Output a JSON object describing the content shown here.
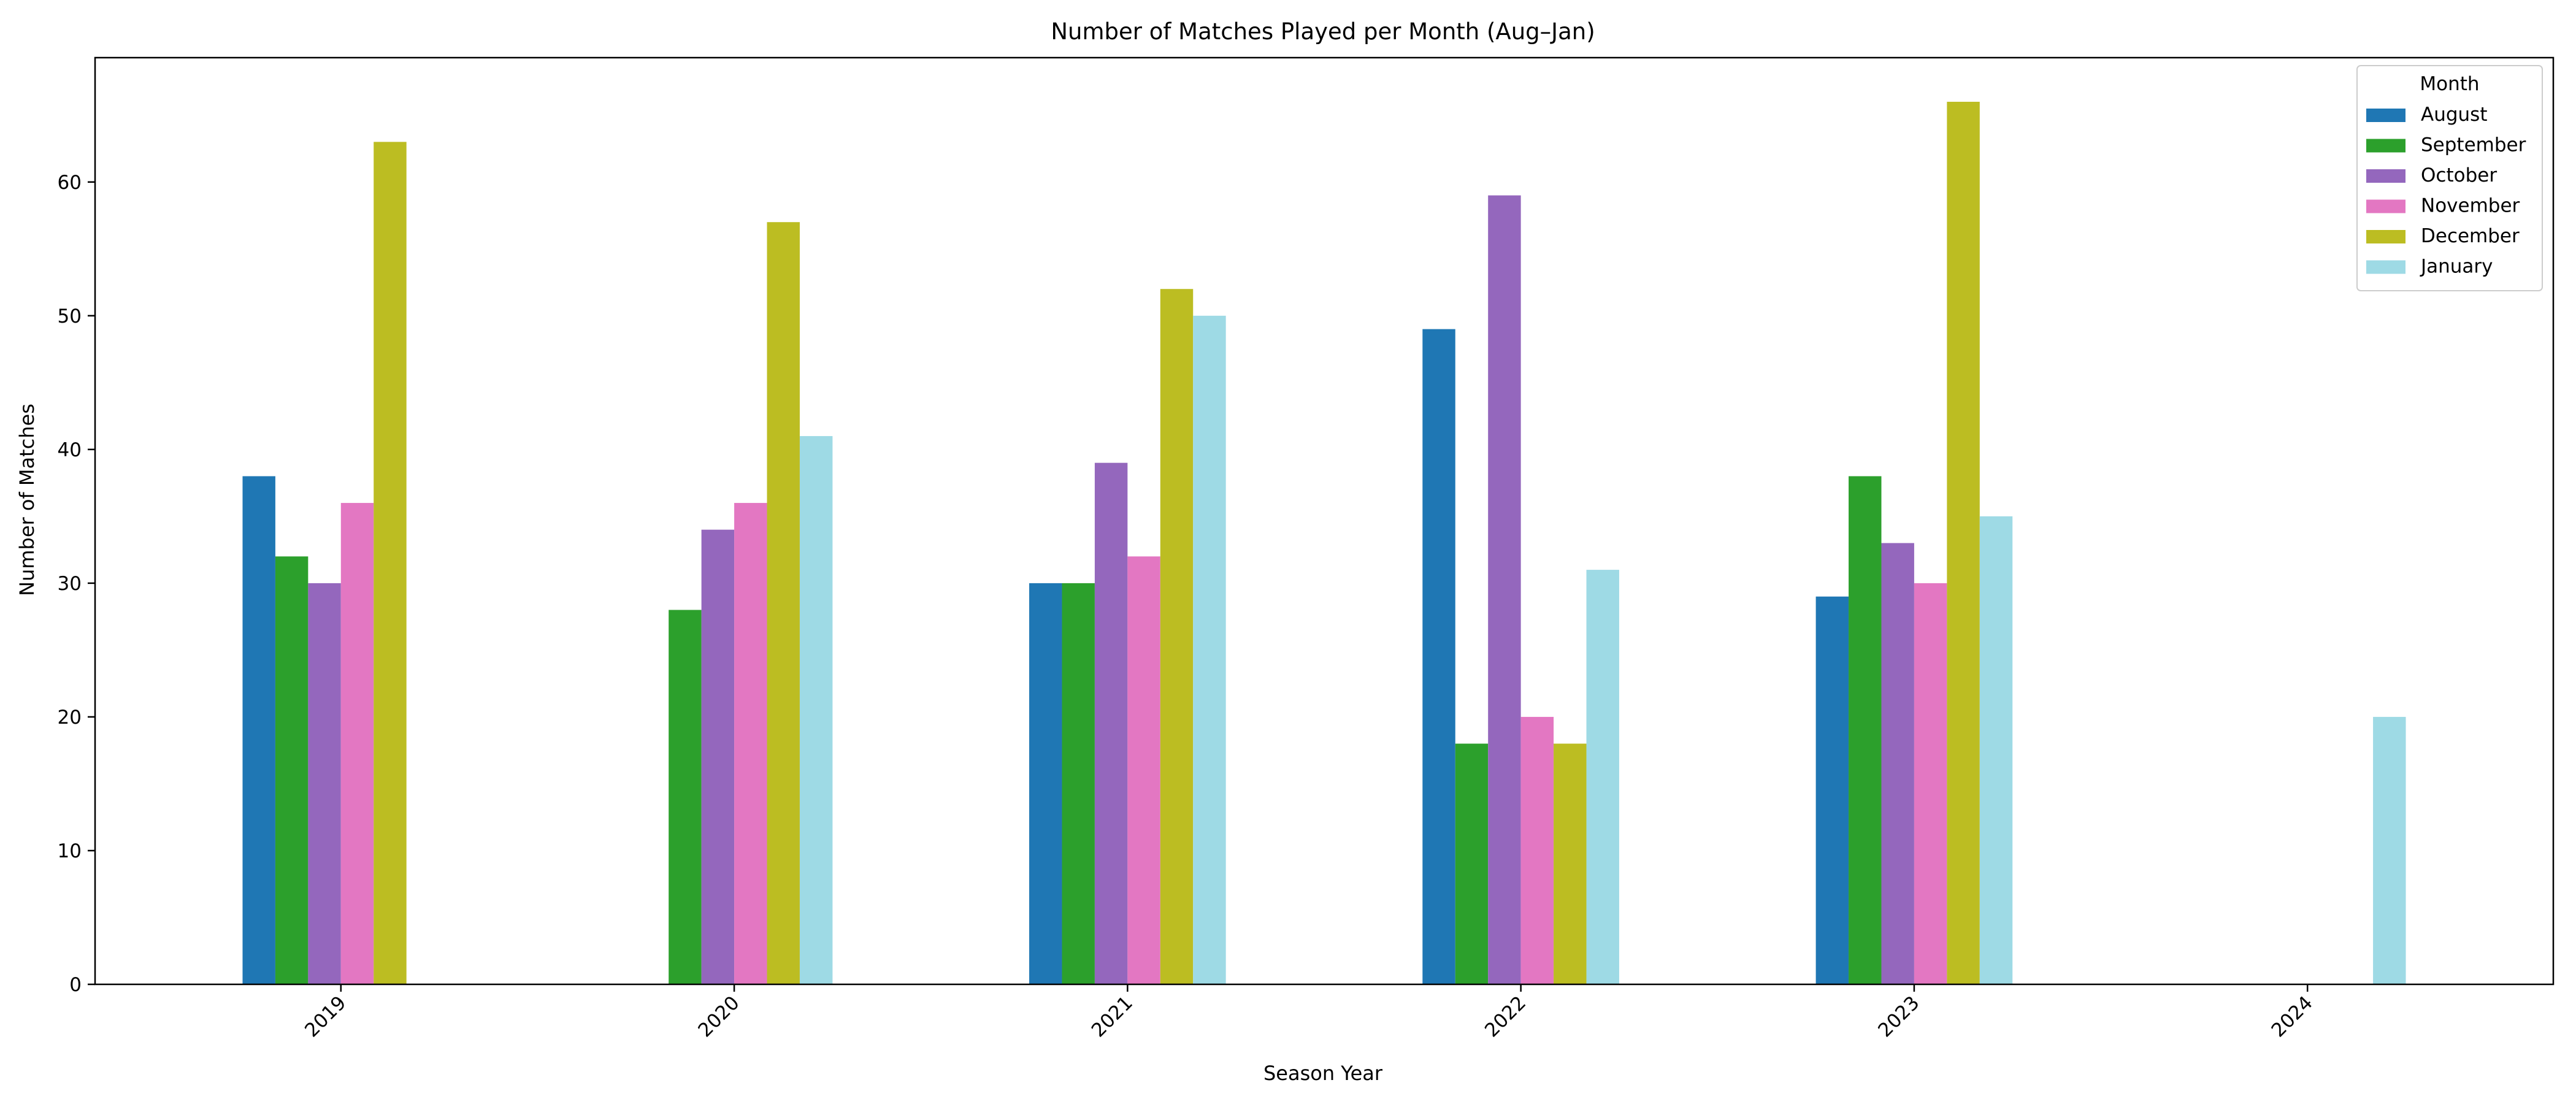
{
  "chart_data": {
    "type": "bar",
    "title": "Number of Matches Played per Month (Aug–Jan)",
    "xlabel": "Season Year",
    "ylabel": "Number of Matches",
    "categories": [
      "2019",
      "2020",
      "2021",
      "2022",
      "2023",
      "2024"
    ],
    "ylim": [
      0,
      69.3
    ],
    "yticks": [
      0,
      10,
      20,
      30,
      40,
      50,
      60
    ],
    "grid": false,
    "legend": {
      "title": "Month",
      "position": "top-right"
    },
    "series": [
      {
        "name": "August",
        "color": "#1f77b4",
        "values": [
          38,
          0,
          30,
          49,
          29,
          0
        ]
      },
      {
        "name": "September",
        "color": "#2ca02c",
        "values": [
          32,
          28,
          30,
          18,
          38,
          0
        ]
      },
      {
        "name": "October",
        "color": "#9467bd",
        "values": [
          30,
          34,
          39,
          59,
          33,
          0
        ]
      },
      {
        "name": "November",
        "color": "#e377c2",
        "values": [
          36,
          36,
          32,
          20,
          30,
          0
        ]
      },
      {
        "name": "December",
        "color": "#bcbd22",
        "values": [
          63,
          57,
          52,
          18,
          66,
          0
        ]
      },
      {
        "name": "January",
        "color": "#9edae5",
        "values": [
          0,
          41,
          50,
          31,
          35,
          20
        ]
      }
    ]
  }
}
